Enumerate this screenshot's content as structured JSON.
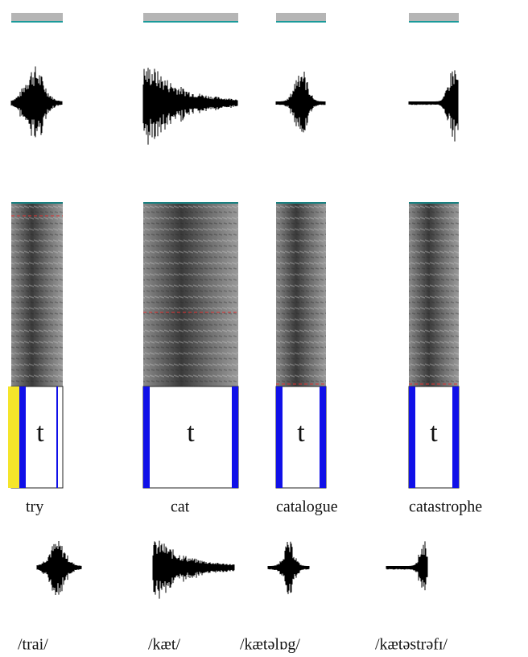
{
  "columns": [
    {
      "segment": "t",
      "word": "try",
      "ipa": "/trai/"
    },
    {
      "segment": "t",
      "word": "cat",
      "ipa": "/kæt/"
    },
    {
      "segment": "t",
      "word": "catalogue",
      "ipa": "/kætəlɒg/"
    },
    {
      "segment": "t",
      "word": "catastrophe",
      "ipa": "/kætəstrəfɪ/"
    }
  ]
}
